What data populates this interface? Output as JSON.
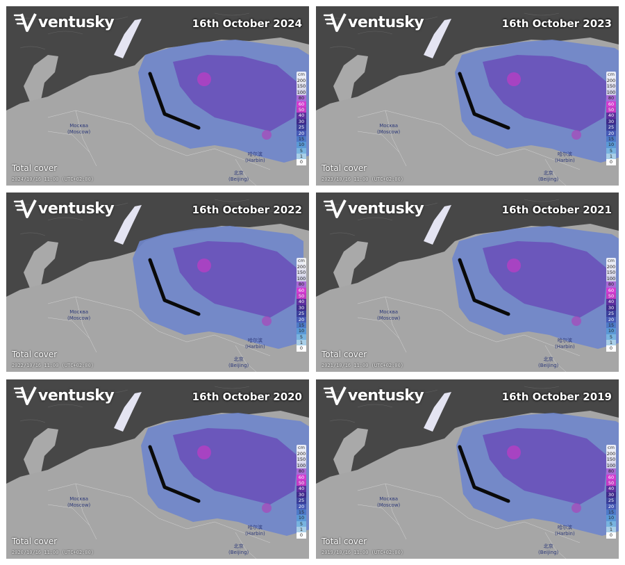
{
  "brand": "ventusky",
  "caption": "Total cover",
  "cities": {
    "moscow": [
      "Москва",
      "(Moscow)"
    ],
    "harbin": [
      "哈尔滨",
      "(Harbin)"
    ],
    "beijing": [
      "北京",
      "(Beijing)"
    ]
  },
  "legend": {
    "unit": "cm",
    "levels": [
      "200",
      "150",
      "100",
      "80",
      "60",
      "50",
      "40",
      "30",
      "25",
      "20",
      "15",
      "10",
      "5",
      "1",
      "0"
    ],
    "colors": [
      "#e9e9f2",
      "#dcdcec",
      "#cfcfe6",
      "#a96ad6",
      "#d23ad0",
      "#c33ac3",
      "#5b2f9c",
      "#3d2a8a",
      "#3a3f9a",
      "#4559b5",
      "#4d79c8",
      "#5a98d6",
      "#78b4e0",
      "#a9cfe8",
      "#ffffff"
    ]
  },
  "panels": [
    {
      "date": "16th October 2024",
      "stamp": "2024/10/16 11:00 (UTC+02:00)"
    },
    {
      "date": "16th October 2023",
      "stamp": "2023/10/16 11:00 (UTC+02:00)"
    },
    {
      "date": "16th October 2022",
      "stamp": "2022/10/16 11:00 (UTC+02:00)"
    },
    {
      "date": "16th October 2021",
      "stamp": "2021/10/16 11:00 (UTC+02:00)"
    },
    {
      "date": "16th October 2020",
      "stamp": "2020/10/16 11:00 (UTC+02:00)"
    },
    {
      "date": "16th October 2019",
      "stamp": "2019/10/16 11:00 (UTC+02:00)"
    }
  ]
}
